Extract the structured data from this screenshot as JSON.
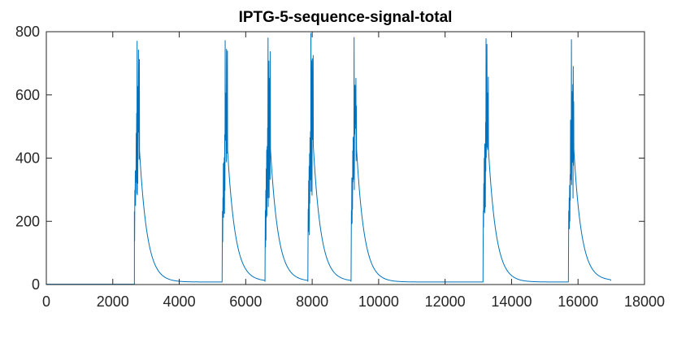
{
  "chart_data": {
    "type": "line",
    "title": "IPTG-5-sequence-signal-total",
    "xlabel": "",
    "ylabel": "",
    "xlim": [
      0,
      18000
    ],
    "ylim": [
      0,
      800
    ],
    "x_ticks": [
      0,
      2000,
      4000,
      6000,
      8000,
      10000,
      12000,
      14000,
      16000,
      18000
    ],
    "y_ticks": [
      0,
      200,
      400,
      600,
      800
    ],
    "grid": false,
    "box": true,
    "series": [
      {
        "color": "#0072BD",
        "baseline": 1,
        "end_x": 17000,
        "end_value": 12,
        "pulses": [
          {
            "onset": 2650,
            "peak": 770,
            "decay_to": 8,
            "next": 5300
          },
          {
            "onset": 5300,
            "peak": 772,
            "decay_to": 10,
            "next": 6590
          },
          {
            "onset": 6590,
            "peak": 780,
            "decay_to": 10,
            "next": 7880
          },
          {
            "onset": 7880,
            "peak": 795,
            "decay_to": 10,
            "next": 9180
          },
          {
            "onset": 9180,
            "peak": 782,
            "decay_to": 8,
            "next": 13150
          },
          {
            "onset": 13150,
            "peak": 778,
            "decay_to": 8,
            "next": 15720
          },
          {
            "onset": 15720,
            "peak": 775,
            "decay_to": 12,
            "next": 17000
          }
        ]
      }
    ]
  },
  "colors": {
    "line": "#0072BD",
    "axes": "#262626",
    "background": "#ffffff"
  }
}
